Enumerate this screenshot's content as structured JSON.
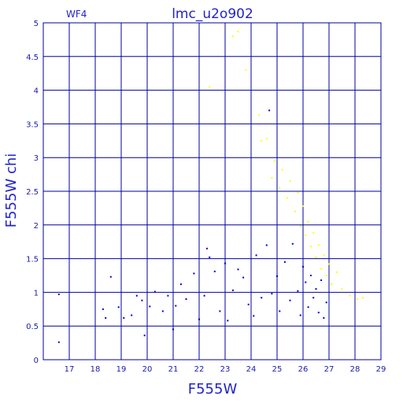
{
  "chart_data": {
    "type": "scatter",
    "title": "lmc_u2o902",
    "corner_label": "WF4",
    "xlabel": "F555W",
    "ylabel": "F555W chi",
    "xlim": [
      16,
      29
    ],
    "ylim": [
      0,
      5
    ],
    "xticks": [
      "17",
      "18",
      "19",
      "20",
      "21",
      "22",
      "23",
      "24",
      "25",
      "26",
      "27",
      "28",
      "29"
    ],
    "yticks": [
      "0",
      "0.5",
      "1",
      "1.5",
      "2",
      "2.5",
      "3",
      "3.5",
      "4",
      "4.5",
      "5"
    ],
    "grid": true,
    "colors": {
      "axes": "#0000a0",
      "text": "#2222cc",
      "blue_points": "#0000dd",
      "yellow_points": "#ffff00"
    },
    "series": [
      {
        "color": "blue",
        "points": [
          [
            16.6,
            0.97
          ],
          [
            16.6,
            0.26
          ],
          [
            18.3,
            0.75
          ],
          [
            18.4,
            0.62
          ],
          [
            18.6,
            1.23
          ],
          [
            18.9,
            0.78
          ],
          [
            19.1,
            0.62
          ],
          [
            19.4,
            0.66
          ],
          [
            19.6,
            0.95
          ],
          [
            19.8,
            0.88
          ],
          [
            19.9,
            0.36
          ],
          [
            20.1,
            0.79
          ],
          [
            20.3,
            1.01
          ],
          [
            20.6,
            0.72
          ],
          [
            20.8,
            0.95
          ],
          [
            21.0,
            0.45
          ],
          [
            21.1,
            0.8
          ],
          [
            21.3,
            1.12
          ],
          [
            21.5,
            0.9
          ],
          [
            21.8,
            1.28
          ],
          [
            22.0,
            0.6
          ],
          [
            22.2,
            0.95
          ],
          [
            22.3,
            1.65
          ],
          [
            22.4,
            1.52
          ],
          [
            22.6,
            1.31
          ],
          [
            22.8,
            0.72
          ],
          [
            23.0,
            1.43
          ],
          [
            23.1,
            0.58
          ],
          [
            23.3,
            1.03
          ],
          [
            23.5,
            1.34
          ],
          [
            23.7,
            1.22
          ],
          [
            23.9,
            0.82
          ],
          [
            24.1,
            0.65
          ],
          [
            24.2,
            1.55
          ],
          [
            24.4,
            0.92
          ],
          [
            24.6,
            1.7
          ],
          [
            24.7,
            3.7
          ],
          [
            24.8,
            0.98
          ],
          [
            25.0,
            1.24
          ],
          [
            25.1,
            0.72
          ],
          [
            25.3,
            1.45
          ],
          [
            25.5,
            0.88
          ],
          [
            25.6,
            1.72
          ],
          [
            25.8,
            1.02
          ],
          [
            25.9,
            0.66
          ],
          [
            26.0,
            1.38
          ],
          [
            26.1,
            1.15
          ],
          [
            26.2,
            0.78
          ],
          [
            26.3,
            1.25
          ],
          [
            26.4,
            0.92
          ],
          [
            26.5,
            1.05
          ],
          [
            26.6,
            0.7
          ],
          [
            26.7,
            1.18
          ],
          [
            26.8,
            0.62
          ],
          [
            26.9,
            0.85
          ]
        ]
      },
      {
        "color": "yellow",
        "points": [
          [
            22.4,
            4.05
          ],
          [
            23.3,
            4.8
          ],
          [
            23.5,
            4.87
          ],
          [
            23.8,
            4.3
          ],
          [
            24.3,
            3.63
          ],
          [
            24.4,
            3.25
          ],
          [
            24.6,
            3.28
          ],
          [
            24.8,
            2.7
          ],
          [
            24.9,
            2.95
          ],
          [
            25.1,
            2.55
          ],
          [
            25.2,
            2.82
          ],
          [
            25.4,
            2.4
          ],
          [
            25.5,
            2.65
          ],
          [
            25.7,
            2.2
          ],
          [
            25.8,
            2.48
          ],
          [
            25.9,
            1.98
          ],
          [
            26.0,
            2.28
          ],
          [
            26.1,
            1.85
          ],
          [
            26.2,
            2.05
          ],
          [
            26.3,
            1.68
          ],
          [
            26.4,
            1.88
          ],
          [
            26.5,
            1.52
          ],
          [
            26.6,
            1.7
          ],
          [
            26.7,
            1.35
          ],
          [
            26.8,
            1.55
          ],
          [
            26.9,
            1.25
          ],
          [
            27.0,
            1.42
          ],
          [
            27.1,
            1.12
          ],
          [
            27.3,
            1.3
          ],
          [
            27.5,
            1.05
          ],
          [
            27.8,
            0.95
          ],
          [
            28.1,
            0.9
          ],
          [
            28.3,
            0.92
          ]
        ]
      }
    ]
  }
}
